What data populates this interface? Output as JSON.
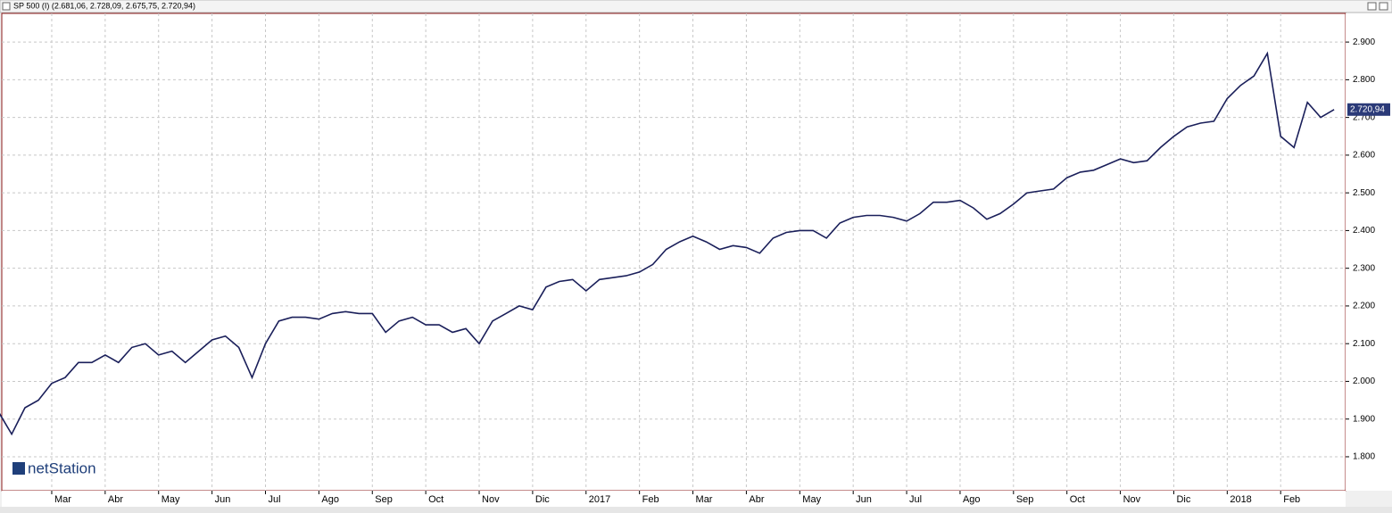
{
  "chart_data": {
    "type": "line",
    "title": "SP 500 (I) (2.681,06, 2.728,09, 2.675,75, 2.720,94)",
    "logo": "netStation",
    "last_value_label": "2.720,94",
    "categories": [
      null,
      null,
      null,
      null,
      "Mar",
      null,
      null,
      null,
      "Abr",
      null,
      null,
      null,
      "May",
      null,
      null,
      null,
      "Jun",
      null,
      null,
      null,
      "Jul",
      null,
      null,
      null,
      "Ago",
      null,
      null,
      null,
      "Sep",
      null,
      null,
      null,
      "Oct",
      null,
      null,
      null,
      "Nov",
      null,
      null,
      null,
      "Dic",
      null,
      null,
      null,
      "2017",
      null,
      null,
      null,
      "Feb",
      null,
      null,
      null,
      "Mar",
      null,
      null,
      null,
      "Abr",
      null,
      null,
      null,
      "May",
      null,
      null,
      null,
      "Jun",
      null,
      null,
      null,
      "Jul",
      null,
      null,
      null,
      "Ago",
      null,
      null,
      null,
      "Sep",
      null,
      null,
      null,
      "Oct",
      null,
      null,
      null,
      "Nov",
      null,
      null,
      null,
      "Dic",
      null,
      null,
      null,
      "2018",
      null,
      null,
      null,
      "Feb",
      null,
      null,
      null,
      null
    ],
    "series": [
      {
        "name": "SP 500",
        "color": "#1a1f5a",
        "values": [
          1920,
          1860,
          1930,
          1950,
          1995,
          2010,
          2050,
          2050,
          2070,
          2050,
          2090,
          2100,
          2070,
          2080,
          2050,
          2080,
          2110,
          2120,
          2090,
          2010,
          2100,
          2160,
          2170,
          2170,
          2165,
          2180,
          2185,
          2180,
          2180,
          2130,
          2160,
          2170,
          2150,
          2150,
          2130,
          2140,
          2100,
          2160,
          2180,
          2200,
          2190,
          2250,
          2265,
          2270,
          2240,
          2270,
          2275,
          2280,
          2290,
          2310,
          2350,
          2370,
          2385,
          2370,
          2350,
          2360,
          2355,
          2340,
          2380,
          2395,
          2400,
          2400,
          2380,
          2420,
          2435,
          2440,
          2440,
          2435,
          2425,
          2445,
          2475,
          2475,
          2480,
          2460,
          2430,
          2445,
          2470,
          2500,
          2505,
          2510,
          2540,
          2555,
          2560,
          2575,
          2590,
          2580,
          2585,
          2620,
          2650,
          2675,
          2685,
          2690,
          2750,
          2785,
          2810,
          2870,
          2650,
          2620,
          2740,
          2700,
          2720.94
        ]
      }
    ],
    "ylim": [
      1710,
      2976
    ],
    "yticks": [
      {
        "value": 1800,
        "label": "1.800"
      },
      {
        "value": 1900,
        "label": "1.900"
      },
      {
        "value": 2000,
        "label": "2.000"
      },
      {
        "value": 2100,
        "label": "2.100"
      },
      {
        "value": 2200,
        "label": "2.200"
      },
      {
        "value": 2300,
        "label": "2.300"
      },
      {
        "value": 2400,
        "label": "2.400"
      },
      {
        "value": 2500,
        "label": "2.500"
      },
      {
        "value": 2600,
        "label": "2.600"
      },
      {
        "value": 2700,
        "label": "2.700"
      },
      {
        "value": 2800,
        "label": "2.800"
      },
      {
        "value": 2900,
        "label": "2.900"
      }
    ],
    "grid": true
  }
}
